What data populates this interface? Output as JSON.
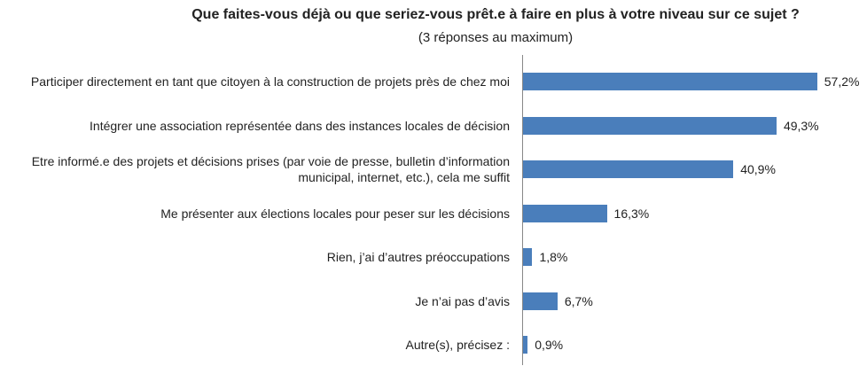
{
  "chart_data": {
    "type": "barh",
    "title": "Que faites-vous déjà ou que seriez-vous prêt.e à faire en plus à votre niveau sur ce sujet ?",
    "subtitle": "(3 réponses au maximum)",
    "categories": [
      "Participer directement en tant que citoyen à la construction de projets près de chez moi",
      "Intégrer une association représentée dans des instances locales de décision",
      "Etre informé.e des projets et décisions prises (par voie de presse, bulletin d’information municipal, internet, etc.), cela me suffit",
      "Me présenter aux élections locales pour peser sur les décisions",
      "Rien, j’ai d’autres préoccupations",
      "Je n’ai pas d’avis",
      "Autre(s), précisez :"
    ],
    "values": [
      57.2,
      49.3,
      40.9,
      16.3,
      1.8,
      6.7,
      0.9
    ],
    "value_labels": [
      "57,2%",
      "49,3%",
      "40,9%",
      "16,3%",
      "1,8%",
      "6,7%",
      "0,9%"
    ],
    "color": "#4a7ebb"
  }
}
